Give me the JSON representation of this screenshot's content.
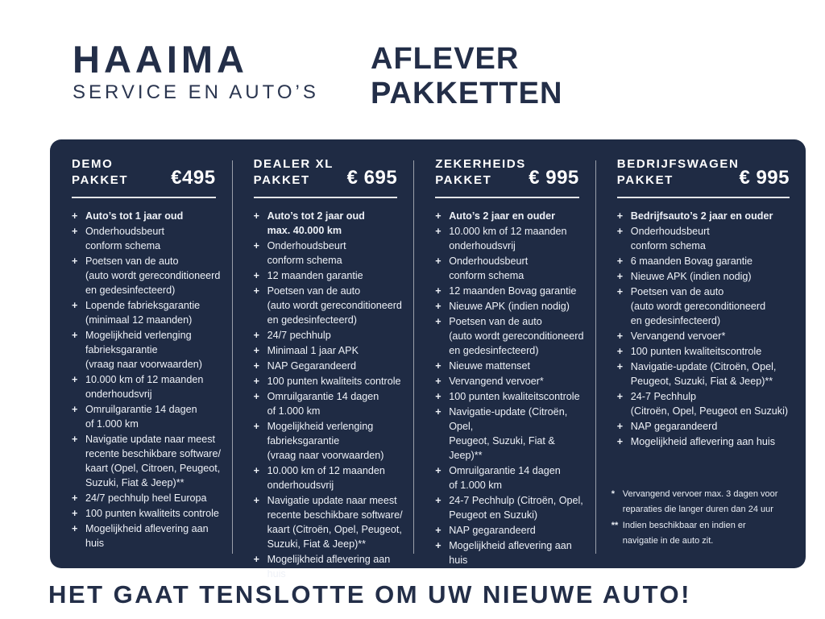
{
  "colors": {
    "page_bg": "#ffffff",
    "panel_bg": "#1f2b44",
    "brand_navy": "#232e48",
    "light_text": "#eef1f7"
  },
  "header": {
    "brand_name": "HAAIMA",
    "brand_tagline": "SERVICE EN AUTO’S",
    "title_line1": "AFLEVER",
    "title_line2": "PAKKETTEN"
  },
  "packages": [
    {
      "name_lines": [
        "DEMO",
        "PAKKET"
      ],
      "price": "€495",
      "items": [
        {
          "bold": true,
          "lines": [
            "Auto’s tot 1 jaar oud"
          ]
        },
        {
          "lines": [
            "Onderhoudsbeurt",
            "conform schema"
          ]
        },
        {
          "lines": [
            "Poetsen van de auto",
            "(auto wordt gereconditioneerd",
            "en gedesinfecteerd)"
          ]
        },
        {
          "lines": [
            "Lopende fabrieksgarantie",
            "(minimaal 12 maanden)"
          ]
        },
        {
          "lines": [
            "Mogelijkheid verlenging",
            "fabrieksgarantie",
            "(vraag naar voorwaarden)"
          ]
        },
        {
          "lines": [
            "10.000 km of 12 maanden",
            "onderhoudsvrij"
          ]
        },
        {
          "lines": [
            "Omruilgarantie 14 dagen",
            "of 1.000 km"
          ]
        },
        {
          "lines": [
            "Navigatie update naar meest",
            "recente beschikbare software/",
            "kaart (Opel, Citroen,  Peugeot,",
            "Suzuki, Fiat & Jeep)**"
          ]
        },
        {
          "lines": [
            "24/7 pechhulp heel Europa"
          ]
        },
        {
          "lines": [
            "100 punten kwaliteits controle"
          ]
        },
        {
          "lines": [
            "Mogelijkheid aflevering aan huis"
          ]
        }
      ]
    },
    {
      "name_lines": [
        "DEALER XL",
        "PAKKET"
      ],
      "price": "€ 695",
      "items": [
        {
          "bold": true,
          "lines": [
            "Auto’s tot 2 jaar oud",
            "max. 40.000 km"
          ]
        },
        {
          "lines": [
            "Onderhoudsbeurt",
            "conform schema"
          ]
        },
        {
          "lines": [
            "12 maanden garantie"
          ]
        },
        {
          "lines": [
            "Poetsen van de auto",
            "(auto wordt gereconditioneerd",
            "en gedesinfecteerd)"
          ]
        },
        {
          "lines": [
            "24/7 pechhulp"
          ]
        },
        {
          "lines": [
            "Minimaal 1 jaar APK"
          ]
        },
        {
          "lines": [
            "NAP Gegarandeerd"
          ]
        },
        {
          "lines": [
            "100 punten kwaliteits controle"
          ]
        },
        {
          "lines": [
            "Omruilgarantie 14 dagen",
            "of 1.000 km"
          ]
        },
        {
          "lines": [
            "Mogelijkheid verlenging",
            "fabrieksgarantie",
            "(vraag naar voorwaarden)"
          ]
        },
        {
          "lines": [
            "10.000 km of 12 maanden",
            "onderhoudsvrij"
          ]
        },
        {
          "lines": [
            "Navigatie update naar meest",
            "recente beschikbare software/",
            "kaart (Citroën, Opel, Peugeot,",
            "Suzuki, Fiat & Jeep)**"
          ]
        },
        {
          "lines": [
            "Mogelijkheid aflevering aan huis"
          ]
        }
      ]
    },
    {
      "name_lines": [
        "ZEKERHEIDS",
        "PAKKET"
      ],
      "price": "€ 995",
      "items": [
        {
          "bold": true,
          "lines": [
            "Auto’s 2 jaar en ouder"
          ]
        },
        {
          "lines": [
            "10.000 km of 12 maanden",
            "onderhoudsvrij"
          ]
        },
        {
          "lines": [
            "Onderhoudsbeurt",
            "conform schema"
          ]
        },
        {
          "lines": [
            "12 maanden Bovag garantie"
          ]
        },
        {
          "lines": [
            "Nieuwe APK (indien nodig)"
          ]
        },
        {
          "lines": [
            "Poetsen van de auto",
            "(auto wordt gereconditioneerd",
            "en gedesinfecteerd)"
          ]
        },
        {
          "lines": [
            "Nieuwe mattenset"
          ]
        },
        {
          "lines": [
            "Vervangend vervoer*"
          ]
        },
        {
          "lines": [
            "100 punten kwaliteitscontrole"
          ]
        },
        {
          "lines": [
            "Navigatie-update (Citroën, Opel,",
            "Peugeot, Suzuki, Fiat & Jeep)**"
          ]
        },
        {
          "lines": [
            "Omruilgarantie 14 dagen",
            "of 1.000 km"
          ]
        },
        {
          "lines": [
            "24-7 Pechhulp (Citroën, Opel,",
            "Peugeot en Suzuki)"
          ]
        },
        {
          "lines": [
            "NAP gegarandeerd"
          ]
        },
        {
          "lines": [
            "Mogelijkheid aflevering aan huis"
          ]
        }
      ]
    },
    {
      "name_lines": [
        "BEDRIJFSWAGEN",
        "PAKKET"
      ],
      "price": "€ 995",
      "items": [
        {
          "bold": true,
          "lines": [
            "Bedrijfsauto’s 2 jaar en ouder"
          ]
        },
        {
          "lines": [
            "Onderhoudsbeurt",
            "conform schema"
          ]
        },
        {
          "lines": [
            "6 maanden Bovag garantie"
          ]
        },
        {
          "lines": [
            "Nieuwe APK (indien nodig)"
          ]
        },
        {
          "lines": [
            "Poetsen van de auto",
            "(auto wordt gereconditioneerd",
            "en gedesinfecteerd)"
          ]
        },
        {
          "lines": [
            "Vervangend vervoer*"
          ]
        },
        {
          "lines": [
            "100 punten kwaliteitscontrole"
          ]
        },
        {
          "lines": [
            "Navigatie-update (Citroën, Opel,",
            "Peugeot, Suzuki, Fiat & Jeep)**"
          ]
        },
        {
          "lines": [
            "24-7 Pechhulp",
            "(Citroën, Opel, Peugeot en Suzuki)"
          ]
        },
        {
          "lines": [
            "NAP gegarandeerd"
          ]
        },
        {
          "lines": [
            "Mogelijkheid aflevering aan huis"
          ]
        }
      ]
    }
  ],
  "footnotes": [
    {
      "marker": "*",
      "lines": [
        "Vervangend vervoer max. 3 dagen voor",
        "reparaties die langer duren dan 24 uur"
      ]
    },
    {
      "marker": "**",
      "lines": [
        "Indien beschikbaar en indien er",
        "navigatie in de auto zit."
      ]
    }
  ],
  "footer": {
    "slogan": "HET GAAT TENSLOTTE OM UW NIEUWE AUTO!"
  }
}
